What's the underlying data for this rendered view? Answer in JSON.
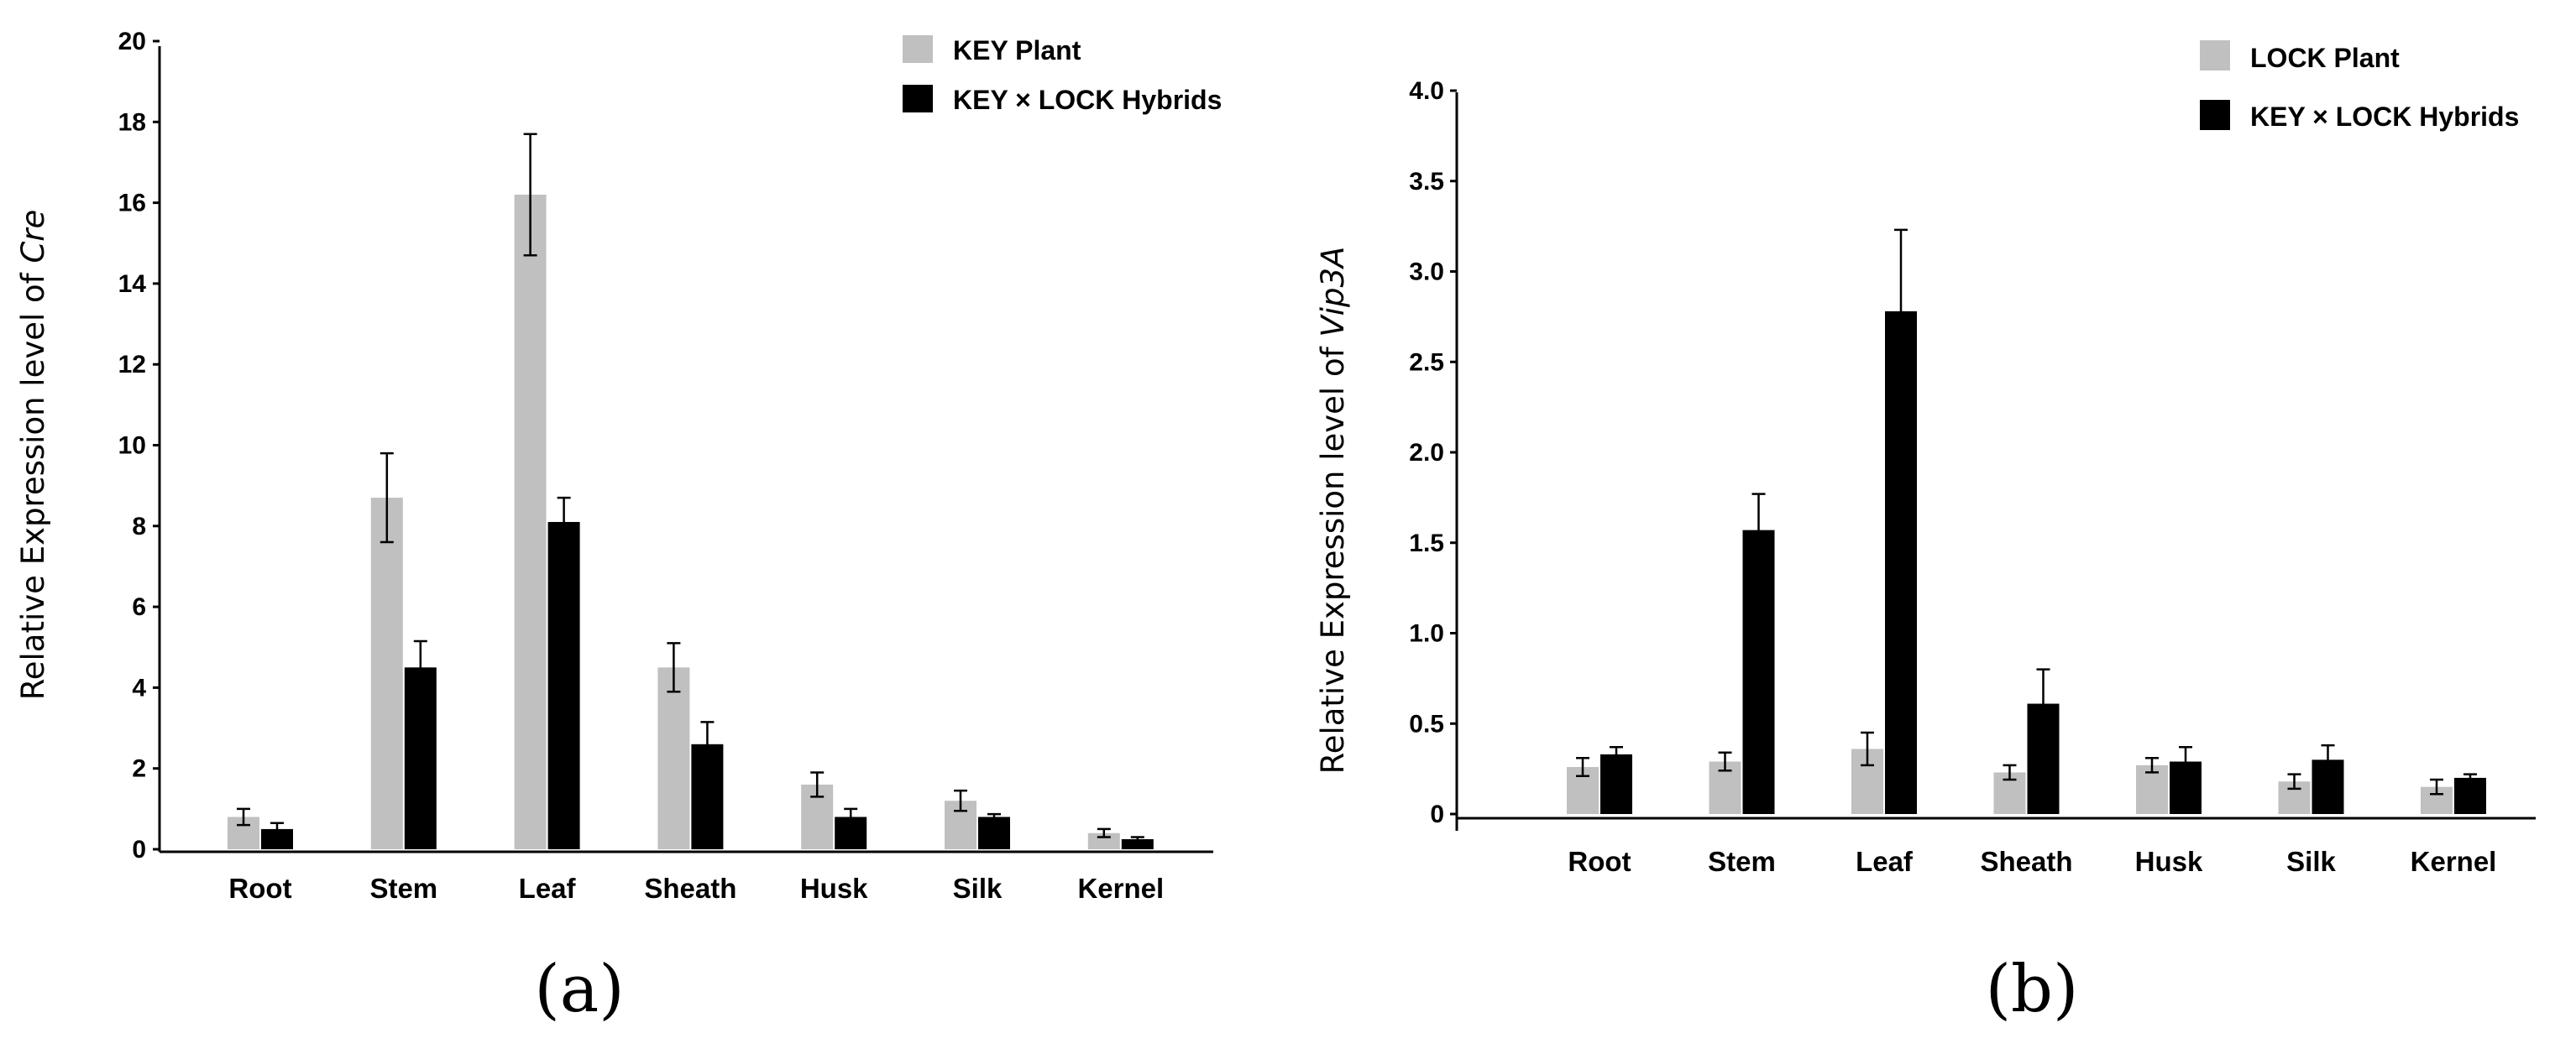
{
  "colors": {
    "series1": "#c0c0c0",
    "series2": "#000000",
    "axis": "#000000"
  },
  "chart_data": [
    {
      "type": "bar",
      "panel_label": "(a)",
      "ylabel_prefix": "Relative Expression level of ",
      "ylabel_gene": "Cre",
      "categories": [
        "Root",
        "Stem",
        "Leaf",
        "Sheath",
        "Husk",
        "Silk",
        "Kernel"
      ],
      "ylim": [
        0,
        20
      ],
      "yticks": [
        "0",
        "2",
        "4",
        "6",
        "8",
        "10",
        "12",
        "14",
        "16",
        "18",
        "20"
      ],
      "legend_position": "top-right",
      "series": [
        {
          "name": "KEY Plant",
          "values": [
            0.8,
            8.7,
            16.2,
            4.5,
            1.6,
            1.2,
            0.4
          ],
          "errors": [
            0.2,
            1.1,
            1.5,
            0.6,
            0.3,
            0.25,
            0.1
          ]
        },
        {
          "name": "KEY × LOCK Hybrids",
          "values": [
            0.5,
            4.5,
            8.1,
            2.6,
            0.8,
            0.8,
            0.25
          ],
          "errors": [
            0.15,
            0.65,
            0.6,
            0.55,
            0.2,
            0.07,
            0.05
          ]
        }
      ]
    },
    {
      "type": "bar",
      "panel_label": "(b)",
      "ylabel_prefix": "Relative Expression level of ",
      "ylabel_gene": "Vip3A",
      "categories": [
        "Root",
        "Stem",
        "Leaf",
        "Sheath",
        "Husk",
        "Silk",
        "Kernel"
      ],
      "ylim": [
        0,
        4.0
      ],
      "yticks": [
        "0",
        "0.5",
        "1.0",
        "1.5",
        "2.0",
        "2.5",
        "3.0",
        "3.5",
        "4.0"
      ],
      "legend_position": "top-right",
      "series": [
        {
          "name": "LOCK Plant",
          "values": [
            0.26,
            0.29,
            0.36,
            0.23,
            0.27,
            0.18,
            0.15
          ],
          "errors": [
            0.05,
            0.05,
            0.09,
            0.04,
            0.04,
            0.04,
            0.04
          ]
        },
        {
          "name": "KEY × LOCK Hybrids",
          "values": [
            0.33,
            1.57,
            2.78,
            0.61,
            0.29,
            0.3,
            0.2
          ],
          "errors": [
            0.04,
            0.2,
            0.45,
            0.19,
            0.08,
            0.08,
            0.02
          ]
        }
      ]
    }
  ]
}
